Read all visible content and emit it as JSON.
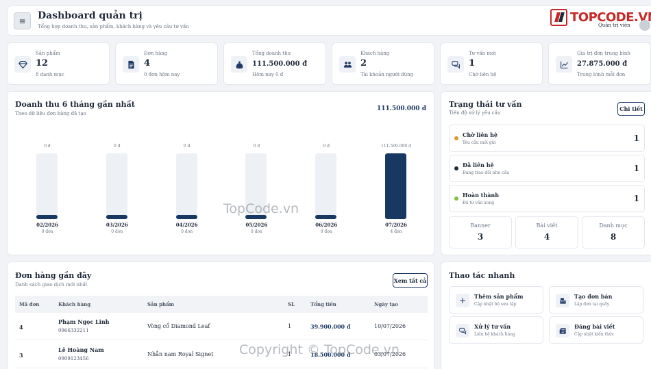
{
  "header": {
    "title": "Dashboard quản trị",
    "subtitle": "Tổng hợp doanh thu, sản phẩm, khách hàng và yêu cầu tư vấn",
    "menu_icon": "≡",
    "logo_text": "TOPCODE.VN",
    "role": "Quản trị viên"
  },
  "stats": [
    {
      "icon": "gem-icon",
      "label": "Sản phẩm",
      "value": "12",
      "sub": "8 danh mục"
    },
    {
      "icon": "document-icon",
      "label": "Đơn hàng",
      "value": "4",
      "sub": "0 đơn hôm nay"
    },
    {
      "icon": "money-bag-icon",
      "label": "Tổng doanh thu",
      "value": "111.500.000 đ",
      "sub": "Hôm nay 0 đ"
    },
    {
      "icon": "users-icon",
      "label": "Khách hàng",
      "value": "2",
      "sub": "Tài khoản người dùng"
    },
    {
      "icon": "chat-icon",
      "label": "Tư vấn mới",
      "value": "1",
      "sub": "Chờ liên hệ"
    },
    {
      "icon": "chart-line-icon",
      "label": "Giá trị đơn trung bình",
      "value": "27.875.000 đ",
      "sub": "Trung bình mỗi đơn"
    }
  ],
  "revenue": {
    "title": "Doanh thu 6 tháng gần nhất",
    "subtitle": "Theo dữ liệu đơn hàng đã tạo",
    "total": "111.500.000 đ"
  },
  "chart_data": {
    "type": "bar",
    "title": "Doanh thu 6 tháng gần nhất",
    "categories": [
      "02/2026",
      "03/2026",
      "04/2026",
      "05/2026",
      "06/2026",
      "07/2026"
    ],
    "values": [
      0,
      0,
      0,
      0,
      0,
      111500000
    ],
    "value_labels": [
      "0 đ",
      "0 đ",
      "0 đ",
      "0 đ",
      "0 đ",
      "111.500.000 đ"
    ],
    "orders": [
      "0 đơn",
      "0 đơn",
      "0 đơn",
      "0 đơn",
      "0 đơn",
      "4 đơn"
    ],
    "ylim": [
      0,
      111500000
    ],
    "bar_color": "#163861",
    "track_color": "#edf0f4"
  },
  "consult": {
    "title": "Trạng thái tư vấn",
    "subtitle": "Tiến độ xử lý yêu cầu",
    "detail_label": "Chi tiết",
    "statuses": [
      {
        "name": "Chờ liên hệ",
        "desc": "Yêu cầu mới gửi",
        "count": "1",
        "color": "#d99a2b"
      },
      {
        "name": "Đã liên hệ",
        "desc": "Đang trao đổi nhu cầu",
        "count": "1",
        "color": "#1f2a3a"
      },
      {
        "name": "Hoàn thành",
        "desc": "Đã tư vấn xong",
        "count": "1",
        "color": "#7cc142"
      }
    ],
    "minis": [
      {
        "label": "Banner",
        "value": "3"
      },
      {
        "label": "Bài viết",
        "value": "4"
      },
      {
        "label": "Danh mục",
        "value": "8"
      }
    ]
  },
  "orders": {
    "title": "Đơn hàng gần đây",
    "subtitle": "Danh sách giao dịch mới nhất",
    "view_all_label": "Xem tất cả",
    "columns": [
      "Mã đơn",
      "Khách hàng",
      "Sản phẩm",
      "SL",
      "Tổng tiền",
      "Ngày tạo"
    ],
    "rows": [
      {
        "id": "4",
        "customer": "Phạm Ngọc Linh",
        "phone": "0966332211",
        "product": "Vòng cổ Diamond Leaf",
        "qty": "1",
        "total": "39.900.000 đ",
        "date": "10/07/2026"
      },
      {
        "id": "3",
        "customer": "Lê Hoàng Nam",
        "phone": "0909123456",
        "product": "Nhẫn nam Royal Signet",
        "qty": "1",
        "total": "18.500.000 đ",
        "date": "03/07/2026"
      }
    ]
  },
  "quick": {
    "title": "Thao tác nhanh",
    "actions": [
      {
        "icon": "plus-icon",
        "name": "Thêm sản phẩm",
        "desc": "Cập nhật bộ sưu tập"
      },
      {
        "icon": "register-icon",
        "name": "Tạo đơn bán",
        "desc": "Lập đơn tại quầy"
      },
      {
        "icon": "chat-icon",
        "name": "Xử lý tư vấn",
        "desc": "Liên hệ khách hàng"
      },
      {
        "icon": "newspaper-icon",
        "name": "Đăng bài viết",
        "desc": "Cập nhật kiến thức"
      }
    ]
  },
  "watermarks": {
    "center": "TopCode.vn",
    "bottom": "Copyright © TopCode.vn"
  }
}
